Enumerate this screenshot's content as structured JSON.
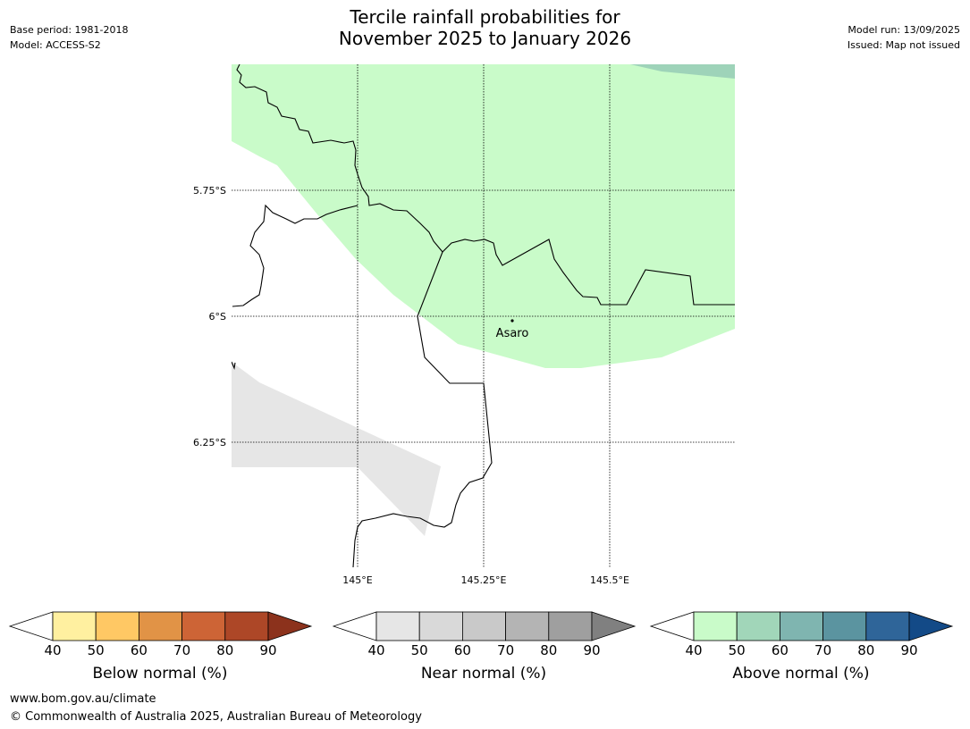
{
  "header": {
    "title_line1": "Tercile rainfall probabilities for",
    "title_line2": "November 2025 to January 2026",
    "base_period": "Base period: 1981-2018",
    "model": "Model: ACCESS-S2",
    "model_run": "Model run: 13/09/2025",
    "issued": "Issued: Map not issued"
  },
  "map": {
    "lat_labels": [
      "5.75°S",
      "6°S",
      "6.25°S"
    ],
    "lon_labels": [
      "145°E",
      "145.25°E",
      "145.5°E"
    ],
    "place_label": "Asaro",
    "colors": {
      "above_40_50": "#c9fbc9",
      "above_50_60": "#9ed3b9",
      "near_40_50": "#e6e6e6",
      "boundary": "#000000"
    }
  },
  "colorbars": {
    "below": {
      "label": "Below normal (%)",
      "ticks": [
        "40",
        "50",
        "60",
        "70",
        "80",
        "90"
      ],
      "colors": [
        "#fff0a0",
        "#ffc864",
        "#e19346",
        "#cd6436",
        "#ad4727",
        "#8c321c"
      ]
    },
    "near": {
      "label": "Near normal (%)",
      "ticks": [
        "40",
        "50",
        "60",
        "70",
        "80",
        "90"
      ],
      "colors": [
        "#e6e6e6",
        "#d9d9d9",
        "#c9c9c9",
        "#b4b4b4",
        "#9f9f9f",
        "#808080"
      ]
    },
    "above": {
      "label": "Above normal (%)",
      "ticks": [
        "40",
        "50",
        "60",
        "70",
        "80",
        "90"
      ],
      "colors": [
        "#c9fbc9",
        "#a1d6b9",
        "#7fb5b0",
        "#5b94a0",
        "#2f6599",
        "#134a87"
      ]
    }
  },
  "footer": {
    "url": "www.bom.gov.au/climate",
    "copyright": "© Commonwealth of Australia 2025, Australian Bureau of Meteorology"
  }
}
